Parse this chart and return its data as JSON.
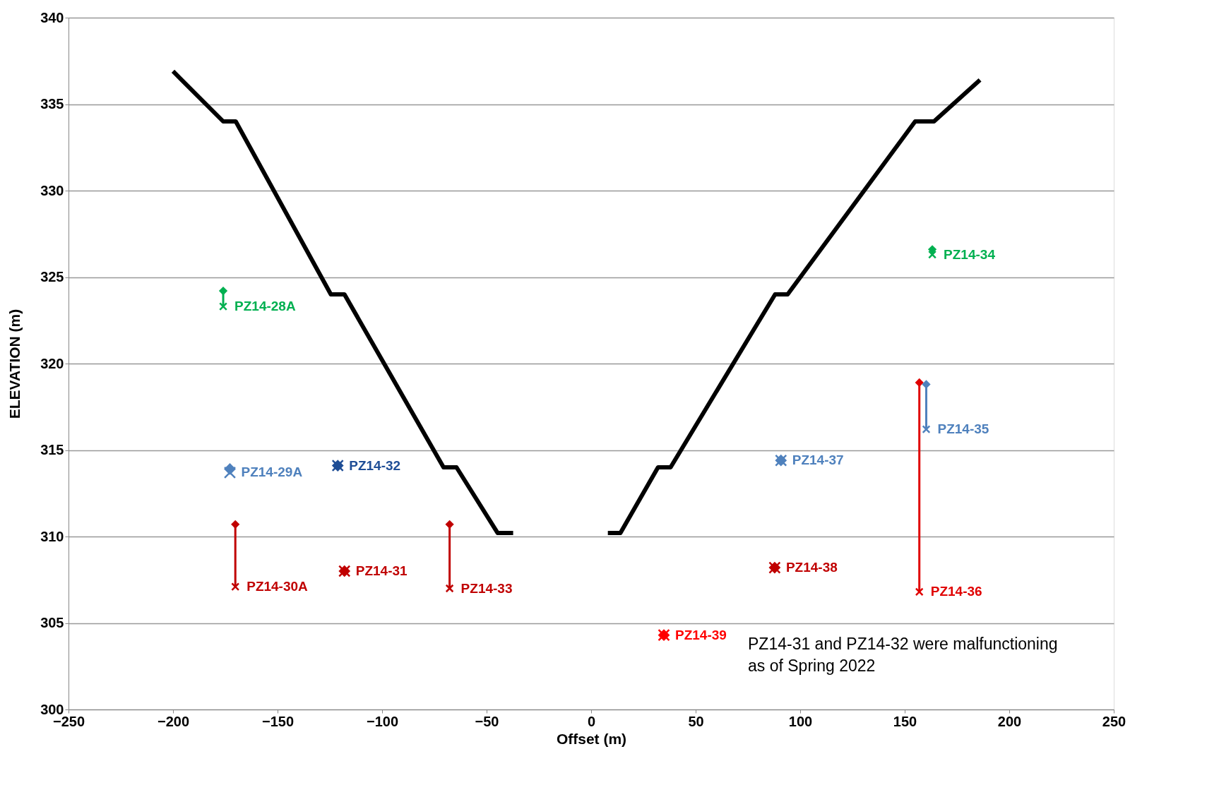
{
  "chart_data": {
    "type": "line",
    "xlabel": "Offset (m)",
    "ylabel": "ELEVATION (m)",
    "xlim": [
      -250,
      250
    ],
    "xticks": [
      -250,
      -200,
      -150,
      -100,
      -50,
      0,
      50,
      100,
      150,
      200,
      250
    ],
    "ylim": [
      300,
      340
    ],
    "yticks": [
      300,
      305,
      310,
      315,
      320,
      325,
      330,
      335,
      340
    ],
    "grid": "y",
    "series": [
      {
        "color": "#000000",
        "marker": "none",
        "x": [
          -200,
          -176,
          -170,
          -124.5,
          -118,
          -70.6,
          -64.4,
          -44.7,
          -37.3
        ],
        "values": [
          336.9,
          334,
          334,
          324,
          324,
          314,
          314,
          310.2,
          310.2
        ]
      },
      {
        "color": "#000000",
        "marker": "none",
        "x": [
          8,
          14,
          32,
          38,
          88,
          94,
          155,
          164,
          186
        ],
        "values": [
          310.2,
          310.2,
          314,
          314,
          324,
          324,
          334,
          334,
          336.4
        ]
      },
      {
        "color": "#00b050",
        "marker": [
          "diamond",
          "cross"
        ],
        "x": [
          -176,
          -176
        ],
        "values": [
          324.2,
          323.3
        ]
      },
      {
        "type": "scatter",
        "color": "#4f81bd",
        "marker": [
          "diamond",
          "cross"
        ],
        "x": [
          -172.8,
          -172.8
        ],
        "values": [
          313.9,
          313.7
        ]
      },
      {
        "type": "scatter",
        "color": "#1f4e96",
        "marker": [
          "diamond",
          "cross"
        ],
        "x": [
          -121.2,
          -121.2
        ],
        "values": [
          314.1,
          314.1
        ]
      },
      {
        "color": "#c00000",
        "marker": [
          "diamond",
          "cross"
        ],
        "x": [
          -170.2,
          -170.2
        ],
        "values": [
          310.7,
          307.1
        ]
      },
      {
        "type": "scatter",
        "color": "#c00000",
        "marker": [
          "diamond",
          "cross"
        ],
        "x": [
          -118,
          -118
        ],
        "values": [
          308.0,
          308.0
        ]
      },
      {
        "color": "#c00000",
        "marker": [
          "diamond",
          "cross"
        ],
        "x": [
          -67.7,
          -67.7
        ],
        "values": [
          310.7,
          307.0
        ]
      },
      {
        "type": "scatter",
        "color": "#ff0000",
        "marker": [
          "diamond",
          "cross"
        ],
        "x": [
          34.8,
          34.8
        ],
        "values": [
          304.3,
          304.3
        ]
      },
      {
        "type": "scatter",
        "color": "#c00000",
        "marker": [
          "diamond",
          "cross"
        ],
        "x": [
          87.8,
          87.8
        ],
        "values": [
          308.2,
          308.2
        ]
      },
      {
        "type": "scatter",
        "color": "#4f81bd",
        "marker": [
          "diamond",
          "cross"
        ],
        "x": [
          90.8,
          90.8
        ],
        "values": [
          314.4,
          314.4
        ]
      },
      {
        "color": "#e00000",
        "marker": [
          "diamond",
          "cross"
        ],
        "x": [
          157,
          157
        ],
        "values": [
          318.9,
          306.8
        ]
      },
      {
        "color": "#4f81bd",
        "marker": [
          "diamond",
          "cross"
        ],
        "x": [
          160.3,
          160.3
        ],
        "values": [
          318.8,
          316.2
        ]
      },
      {
        "color": "#00b050",
        "marker": [
          "diamond",
          "cross"
        ],
        "x": [
          163.2,
          163.2
        ],
        "values": [
          326.6,
          326.3
        ]
      }
    ],
    "annotations": [
      {
        "text": "PZ14-28A",
        "x": -176,
        "y": 323.3
      },
      {
        "text": "PZ14-29A",
        "x": -172.8,
        "y": 313.7
      },
      {
        "text": "PZ14-32",
        "x": -121.2,
        "y": 314.1
      },
      {
        "text": "PZ14-30A",
        "x": -170.2,
        "y": 307.1
      },
      {
        "text": "PZ14-31",
        "x": -118,
        "y": 308.0
      },
      {
        "text": "PZ14-33",
        "x": -67.7,
        "y": 307.0
      },
      {
        "text": "PZ14-39",
        "x": 34.8,
        "y": 304.3
      },
      {
        "text": "PZ14-38",
        "x": 87.8,
        "y": 308.2
      },
      {
        "text": "PZ14-37",
        "x": 90.8,
        "y": 314.4
      },
      {
        "text": "PZ14-36",
        "x": 157,
        "y": 306.8
      },
      {
        "text": "PZ14-35",
        "x": 160.3,
        "y": 316.2
      },
      {
        "text": "PZ14-34",
        "x": 163.2,
        "y": 326.3
      },
      "PZ14-31 and PZ14-32 were malfunctioning\nas of Spring 2022"
    ]
  }
}
